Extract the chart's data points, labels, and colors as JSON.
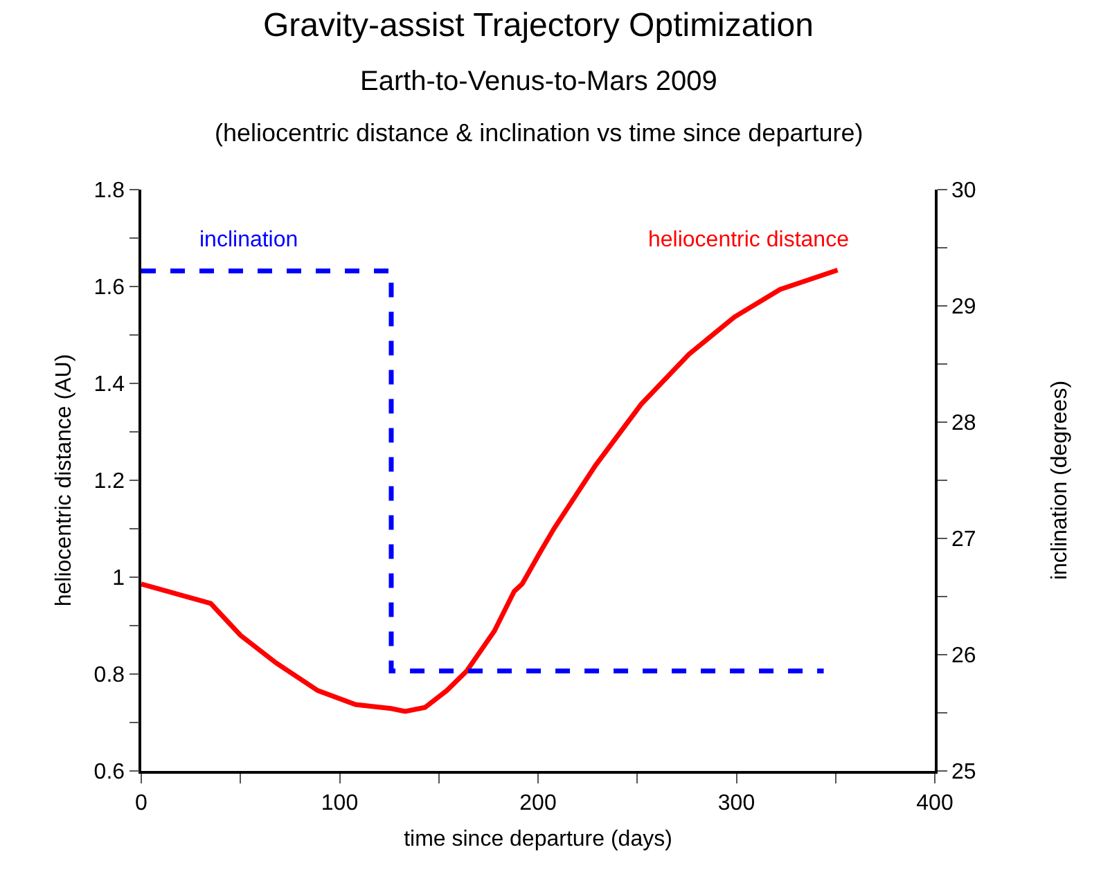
{
  "chart_data": {
    "type": "line",
    "title": "Gravity-assist Trajectory Optimization",
    "subtitle": "Earth-to-Venus-to-Mars 2009",
    "annotations": [
      "(heliocentric distance & inclination vs time since departure)"
    ],
    "xlabel": "time since departure (days)",
    "ylabel": "heliocentric distance (AU)",
    "y2label": "inclination (degrees)",
    "xlim": [
      0,
      400
    ],
    "ylim": [
      0.6,
      1.8
    ],
    "y2lim": [
      25,
      30
    ],
    "xticks": [
      0,
      {
        "value": 50,
        "label": null
      },
      100,
      {
        "value": 150,
        "label": null
      },
      200,
      {
        "value": 250,
        "label": null
      },
      300,
      {
        "value": 350,
        "label": null
      },
      400
    ],
    "yticks": [
      0.6,
      {
        "value": 0.7,
        "label": null
      },
      0.8,
      {
        "value": 0.9,
        "label": null
      },
      1,
      {
        "value": 1.1,
        "label": null
      },
      1.2,
      {
        "value": 1.3,
        "label": null
      },
      1.4,
      {
        "value": 1.5,
        "label": null
      },
      1.6,
      {
        "value": 1.7,
        "label": null
      },
      1.8
    ],
    "y2ticks": [
      25,
      {
        "value": 25.5,
        "label": null
      },
      26,
      {
        "value": 26.5,
        "label": null
      },
      27,
      {
        "value": 27.5,
        "label": null
      },
      28,
      {
        "value": 28.5,
        "label": null
      },
      29,
      {
        "value": 29.5,
        "label": null
      },
      30
    ],
    "marker": "none",
    "series": [
      {
        "name": "heliocentric distance",
        "color": "#ff0000",
        "line_style": "solid",
        "x": [
          0,
          35,
          50,
          68,
          89,
          108,
          126,
          133,
          143,
          154,
          164,
          178,
          188,
          192,
          201,
          208,
          229,
          252,
          276,
          299,
          322,
          351
        ],
        "values": [
          0.986,
          0.946,
          0.88,
          0.823,
          0.766,
          0.737,
          0.729,
          0.723,
          0.731,
          0.766,
          0.806,
          0.889,
          0.971,
          0.986,
          1.051,
          1.1,
          1.231,
          1.357,
          1.46,
          1.537,
          1.594,
          1.634
        ]
      },
      {
        "name": "inclination",
        "color": "#0000ff",
        "line_style": "dashed",
        "axis": "y2",
        "x": [
          0,
          126,
          126,
          344
        ],
        "values": [
          29.3,
          29.3,
          25.86,
          25.86
        ]
      }
    ]
  }
}
